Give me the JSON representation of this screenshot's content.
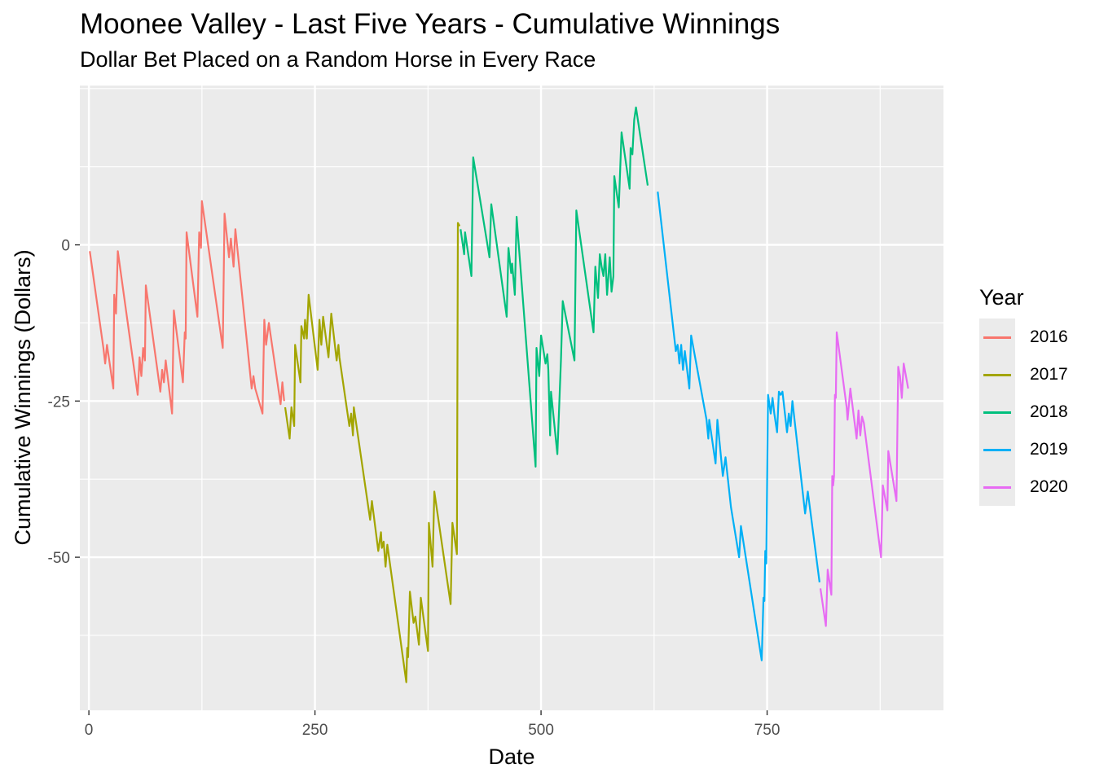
{
  "chart_data": {
    "type": "line",
    "title": "Moonee Valley - Last Five Years - Cumulative Winnings",
    "subtitle": "Dollar Bet Placed on a Random Horse in Every Race",
    "xlabel": "Date",
    "ylabel": "Cumulative Winnings (Dollars)",
    "xlim": [
      -10,
      945
    ],
    "ylim": [
      -74.5,
      25.5
    ],
    "xticks": [
      0,
      250,
      500,
      750
    ],
    "yticks": [
      0,
      -25,
      -50
    ],
    "x_tick_labels": [
      "0",
      "250",
      "500",
      "750"
    ],
    "y_tick_labels": [
      "0",
      "-25",
      "-50"
    ],
    "grid": true,
    "legend": {
      "title": "Year",
      "position": "right"
    },
    "series": [
      {
        "name": "2016",
        "color": "#F8766D",
        "points": [
          [
            1,
            -1
          ],
          [
            16,
            -16.5
          ],
          [
            18,
            -19
          ],
          [
            20,
            -16
          ],
          [
            27,
            -23
          ],
          [
            28,
            -8
          ],
          [
            30,
            -11
          ],
          [
            32,
            -1
          ],
          [
            54,
            -24
          ],
          [
            56,
            -18
          ],
          [
            58,
            -21
          ],
          [
            60,
            -16.5
          ],
          [
            62,
            -18.5
          ],
          [
            63,
            -6.5
          ],
          [
            79,
            -23.5
          ],
          [
            81,
            -20
          ],
          [
            83,
            -22
          ],
          [
            85,
            -18.5
          ],
          [
            92,
            -27
          ],
          [
            94,
            -10.5
          ],
          [
            104,
            -22
          ],
          [
            106,
            -14
          ],
          [
            107,
            -15
          ],
          [
            108,
            2
          ],
          [
            120,
            -11.5
          ],
          [
            122,
            2
          ],
          [
            124,
            -0.5
          ],
          [
            125,
            7
          ],
          [
            148,
            -16.5
          ],
          [
            150,
            5
          ],
          [
            155,
            -2
          ],
          [
            157,
            1
          ],
          [
            158,
            -0.5
          ],
          [
            160,
            -3.5
          ],
          [
            162,
            2.5
          ],
          [
            180,
            -23
          ],
          [
            182,
            -21
          ],
          [
            184,
            -23
          ],
          [
            192,
            -27
          ],
          [
            194,
            -12
          ],
          [
            196,
            -16
          ],
          [
            199,
            -12.5
          ],
          [
            212,
            -25.5
          ],
          [
            214,
            -22
          ],
          [
            216,
            -25
          ]
        ]
      },
      {
        "name": "2017",
        "color": "#A3A500",
        "points": [
          [
            217,
            -26
          ],
          [
            222,
            -31
          ],
          [
            224,
            -26
          ],
          [
            227,
            -29
          ],
          [
            228,
            -16
          ],
          [
            234,
            -22
          ],
          [
            235,
            -13
          ],
          [
            238,
            -15
          ],
          [
            239,
            -12
          ],
          [
            241,
            -15
          ],
          [
            243,
            -8
          ],
          [
            253,
            -20
          ],
          [
            255,
            -12
          ],
          [
            257,
            -16
          ],
          [
            259,
            -11.5
          ],
          [
            265,
            -18
          ],
          [
            268,
            -11
          ],
          [
            274,
            -18.5
          ],
          [
            276,
            -16
          ],
          [
            277,
            -18
          ],
          [
            288,
            -29
          ],
          [
            290,
            -27
          ],
          [
            292,
            -30.5
          ],
          [
            293,
            -26
          ],
          [
            311,
            -44
          ],
          [
            313,
            -41
          ],
          [
            320,
            -49
          ],
          [
            323,
            -46
          ],
          [
            324,
            -48.5
          ],
          [
            326,
            -47.5
          ],
          [
            328,
            -51.5
          ],
          [
            330,
            -48
          ],
          [
            351,
            -70
          ],
          [
            352,
            -64.5
          ],
          [
            353,
            -66
          ],
          [
            355,
            -55.5
          ],
          [
            359,
            -60.5
          ],
          [
            361,
            -59.5
          ],
          [
            365,
            -64
          ],
          [
            367,
            -56.5
          ],
          [
            375,
            -65
          ],
          [
            376,
            -44.5
          ],
          [
            380,
            -51.5
          ],
          [
            382,
            -39.5
          ],
          [
            400,
            -57.5
          ],
          [
            402,
            -44.5
          ],
          [
            407,
            -49.5
          ],
          [
            408,
            3.5
          ],
          [
            410,
            3
          ]
        ]
      },
      {
        "name": "2018",
        "color": "#00BF7D",
        "points": [
          [
            411,
            2.5
          ],
          [
            415,
            -1.5
          ],
          [
            416,
            2
          ],
          [
            423,
            -5
          ],
          [
            425,
            14
          ],
          [
            443,
            -2
          ],
          [
            445,
            6.5
          ],
          [
            462,
            -11.5
          ],
          [
            464,
            -0.5
          ],
          [
            467,
            -4.5
          ],
          [
            468,
            -3
          ],
          [
            471,
            -8
          ],
          [
            473,
            4.5
          ],
          [
            494,
            -35.5
          ],
          [
            495,
            -16.5
          ],
          [
            498,
            -21
          ],
          [
            500,
            -14.5
          ],
          [
            505,
            -19
          ],
          [
            507,
            -17.5
          ],
          [
            508,
            -20
          ],
          [
            510,
            -30.5
          ],
          [
            511,
            -23.5
          ],
          [
            518,
            -33.5
          ],
          [
            520,
            -26
          ],
          [
            522,
            -18.5
          ],
          [
            524,
            -9
          ],
          [
            537,
            -18.5
          ],
          [
            539,
            5.5
          ],
          [
            558,
            -14
          ],
          [
            560,
            -3.5
          ],
          [
            563,
            -8.5
          ],
          [
            565,
            -1.5
          ],
          [
            567,
            -3.5
          ],
          [
            569,
            -5
          ],
          [
            571,
            -1.5
          ],
          [
            573,
            -8
          ],
          [
            576,
            -2
          ],
          [
            578,
            -7.5
          ],
          [
            580,
            -5
          ],
          [
            581,
            11
          ],
          [
            586,
            6
          ],
          [
            589,
            18
          ],
          [
            598,
            9
          ],
          [
            599,
            15.5
          ],
          [
            601,
            14.5
          ],
          [
            603,
            20
          ],
          [
            605,
            22
          ],
          [
            618,
            9.5
          ]
        ]
      },
      {
        "name": "2019",
        "color": "#00B0F6",
        "points": [
          [
            629,
            8.5
          ],
          [
            649,
            -17
          ],
          [
            651,
            -16
          ],
          [
            653,
            -19
          ],
          [
            655,
            -16
          ],
          [
            657,
            -20
          ],
          [
            659,
            -17
          ],
          [
            664,
            -23
          ],
          [
            666,
            -14.5
          ],
          [
            683,
            -28
          ],
          [
            685,
            -31
          ],
          [
            686,
            -28
          ],
          [
            693,
            -35
          ],
          [
            695,
            -28
          ],
          [
            701,
            -37
          ],
          [
            704,
            -34
          ],
          [
            710,
            -42
          ],
          [
            719,
            -50
          ],
          [
            721,
            -45
          ],
          [
            744,
            -66.5
          ],
          [
            746,
            -56.5
          ],
          [
            747,
            -57
          ],
          [
            748,
            -49
          ],
          [
            749,
            -51
          ],
          [
            751,
            -24
          ],
          [
            752,
            -25
          ],
          [
            754,
            -27
          ],
          [
            756,
            -24.5
          ],
          [
            758,
            -27
          ],
          [
            761,
            -30
          ],
          [
            763,
            -23.5
          ],
          [
            765,
            -24
          ],
          [
            767,
            -23.5
          ],
          [
            772,
            -30
          ],
          [
            774,
            -27
          ],
          [
            776,
            -29
          ],
          [
            778,
            -25
          ],
          [
            792,
            -43
          ],
          [
            795,
            -39.5
          ],
          [
            808,
            -54
          ]
        ]
      },
      {
        "name": "2020",
        "color": "#E76BF3",
        "points": [
          [
            809,
            -55
          ],
          [
            815,
            -61
          ],
          [
            817,
            -52
          ],
          [
            821,
            -56
          ],
          [
            822,
            -37
          ],
          [
            823,
            -38.5
          ],
          [
            824,
            -37
          ],
          [
            825,
            -24
          ],
          [
            826,
            -24.5
          ],
          [
            827,
            -14
          ],
          [
            838,
            -26
          ],
          [
            839,
            -28
          ],
          [
            842,
            -23
          ],
          [
            849,
            -31
          ],
          [
            851,
            -26.5
          ],
          [
            853,
            -30.5
          ],
          [
            855,
            -27.5
          ],
          [
            857,
            -28.5
          ],
          [
            876,
            -50
          ],
          [
            878,
            -38.5
          ],
          [
            883,
            -42.5
          ],
          [
            884,
            -33
          ],
          [
            893,
            -41
          ],
          [
            895,
            -19.5
          ],
          [
            897,
            -21
          ],
          [
            899,
            -24.5
          ],
          [
            901,
            -19
          ],
          [
            906,
            -23
          ]
        ]
      }
    ]
  }
}
